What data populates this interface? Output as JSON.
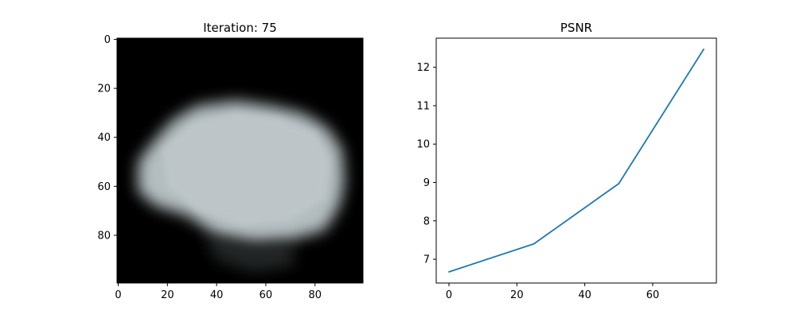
{
  "chart_data": [
    {
      "type": "heatmap",
      "title": "Iteration: 75",
      "xlabel": "",
      "ylabel": "",
      "xlim": [
        -0.5,
        99.5
      ],
      "ylim": [
        99.5,
        -0.5
      ],
      "xticks": [
        0,
        20,
        40,
        60,
        80
      ],
      "yticks": [
        0,
        20,
        40,
        60,
        80
      ],
      "xtick_labels": [
        "0",
        "20",
        "40",
        "60",
        "80"
      ],
      "ytick_labels": [
        "0",
        "20",
        "40",
        "60",
        "80"
      ],
      "grid": false,
      "colors": {
        "background": "#000000",
        "blob": "#b4bdc0"
      }
    },
    {
      "type": "line",
      "title": "PSNR",
      "xlabel": "",
      "ylabel": "",
      "x": [
        0,
        25,
        50,
        75
      ],
      "series": [
        {
          "values": [
            6.67,
            7.4,
            8.97,
            12.47
          ],
          "color": "#1f77b4"
        }
      ],
      "xlim": [
        -3.75,
        78.75
      ],
      "ylim": [
        6.38,
        12.76
      ],
      "xticks": [
        0,
        20,
        40,
        60
      ],
      "yticks": [
        7,
        8,
        9,
        10,
        11,
        12
      ],
      "xtick_labels": [
        "0",
        "20",
        "40",
        "60"
      ],
      "ytick_labels": [
        "7",
        "8",
        "9",
        "10",
        "11",
        "12"
      ],
      "grid": false
    }
  ]
}
